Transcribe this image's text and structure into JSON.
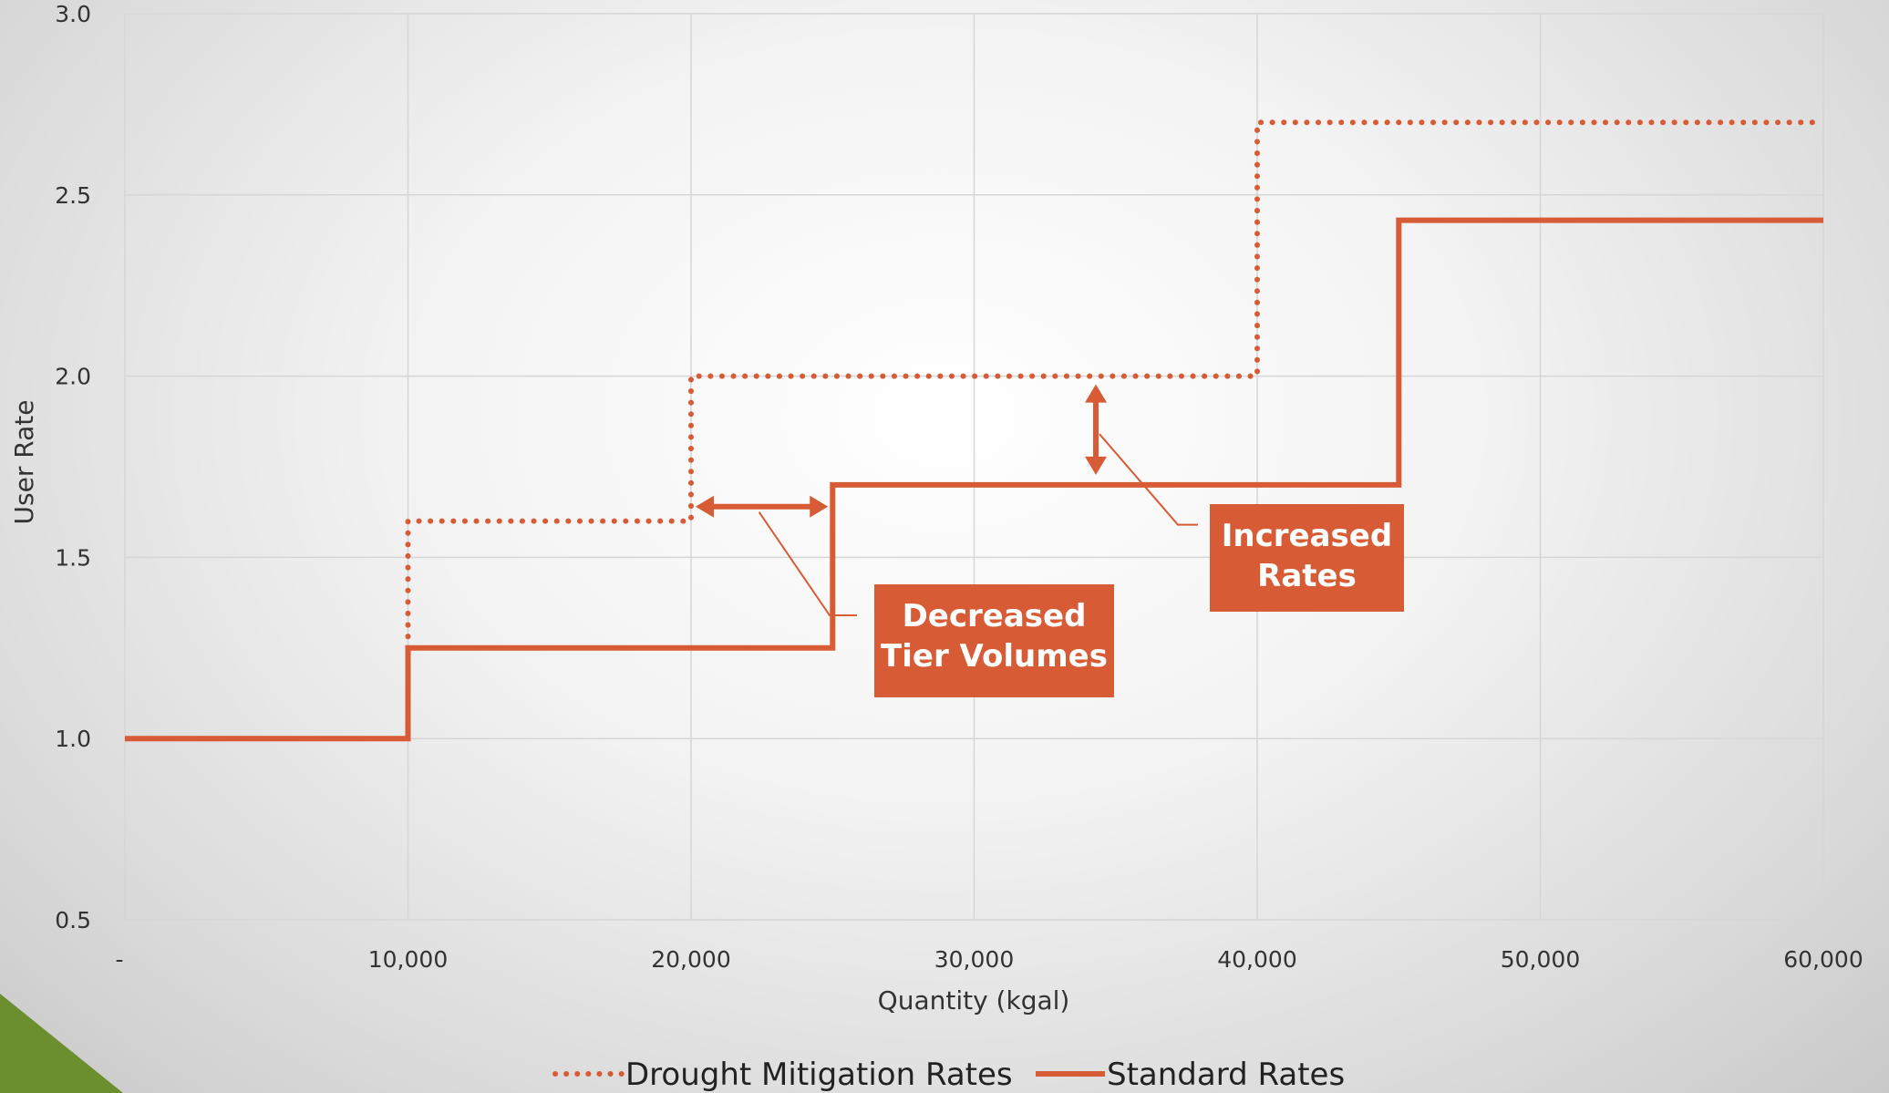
{
  "chart_data": {
    "type": "line",
    "title": "",
    "xlabel": "Quantity (kgal)",
    "ylabel": "User Rate",
    "xlim": [
      0,
      60000
    ],
    "ylim": [
      0.5,
      3.0
    ],
    "x_ticks": [
      0,
      10000,
      20000,
      30000,
      40000,
      50000,
      60000
    ],
    "x_tick_labels": [
      "-",
      "10,000",
      "20,000",
      "30,000",
      "40,000",
      "50,000",
      "60,000"
    ],
    "y_ticks": [
      0.5,
      1.0,
      1.5,
      2.0,
      2.5,
      3.0
    ],
    "y_tick_labels": [
      "0.5",
      "1.0",
      "1.5",
      "2.0",
      "2.5",
      "3.0"
    ],
    "grid": true,
    "legend_position": "bottom",
    "series": [
      {
        "name": "Drought Mitigation Rates",
        "style": "dotted",
        "color": "#D75B35",
        "step_points": [
          [
            10000,
            1.25
          ],
          [
            10000,
            1.6
          ],
          [
            20000,
            1.6
          ],
          [
            20000,
            2.0
          ],
          [
            40000,
            2.0
          ],
          [
            40000,
            2.7
          ],
          [
            60000,
            2.7
          ]
        ]
      },
      {
        "name": "Standard Rates",
        "style": "solid",
        "color": "#D75B35",
        "step_points": [
          [
            0,
            1.0
          ],
          [
            10000,
            1.0
          ],
          [
            10000,
            1.25
          ],
          [
            25000,
            1.25
          ],
          [
            25000,
            1.7
          ],
          [
            45000,
            1.7
          ],
          [
            45000,
            2.43
          ],
          [
            60000,
            2.43
          ]
        ]
      }
    ],
    "annotations": [
      {
        "lines": [
          "Decreased",
          "Tier Volumes"
        ],
        "arrow": "horizontal",
        "from_x": 20000,
        "to_x": 25000,
        "at_y": 1.64
      },
      {
        "lines": [
          "Increased",
          "Rates"
        ],
        "arrow": "vertical",
        "at_x": 34300,
        "from_y": 1.72,
        "to_y": 1.99
      }
    ]
  },
  "colors": {
    "accent": "#D75B35",
    "grid": "#d6d6d6",
    "corner": "#6B8E2E"
  }
}
